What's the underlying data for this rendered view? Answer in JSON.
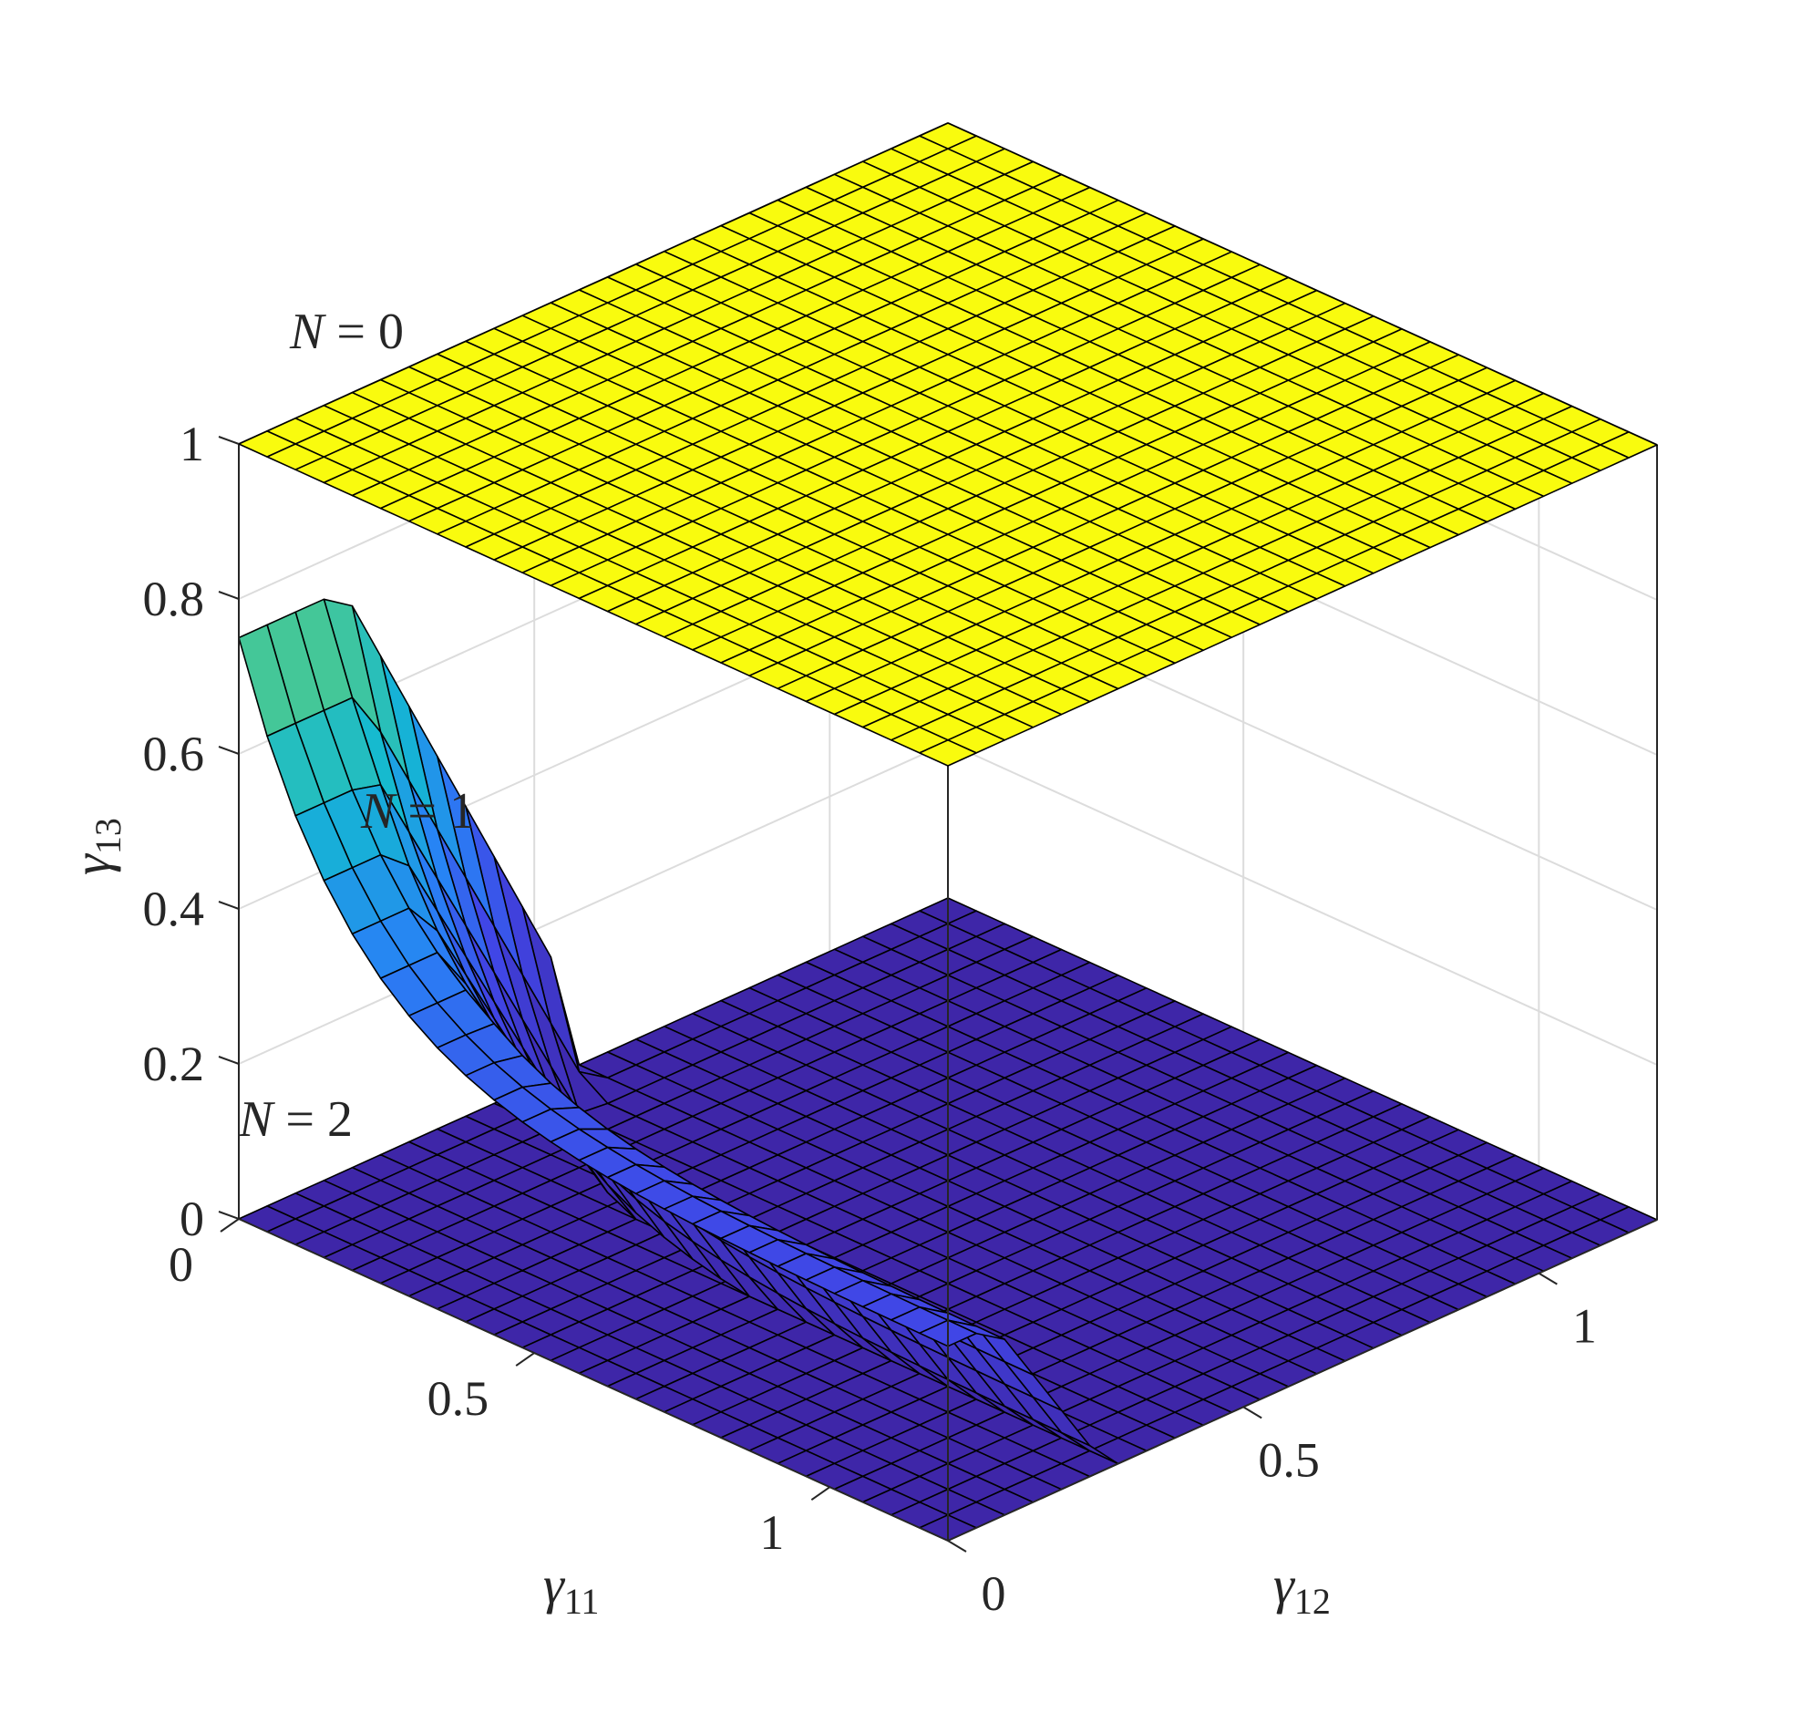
{
  "chart_data": {
    "type": "surface",
    "view": "3d",
    "xlabel": {
      "symbol": "γ",
      "sub": "11"
    },
    "ylabel": {
      "symbol": "γ",
      "sub": "12"
    },
    "zlabel": {
      "symbol": "γ",
      "sub": "13"
    },
    "xlim": [
      0,
      1.2
    ],
    "ylim": [
      0,
      1.2
    ],
    "zlim": [
      0,
      1
    ],
    "x_ticks": [
      0,
      0.5,
      1
    ],
    "x_tick_labels": [
      "0",
      "0.5",
      "1"
    ],
    "y_ticks": [
      0,
      0.5,
      1
    ],
    "y_tick_labels": [
      "0",
      "0.5",
      "1"
    ],
    "z_ticks": [
      0,
      0.2,
      0.4,
      0.6,
      0.8,
      1
    ],
    "z_tick_labels": [
      "0",
      "0.2",
      "0.4",
      "0.6",
      "0.8",
      "1"
    ],
    "grid": true,
    "colormap": "parula",
    "colors": {
      "N0_surface": "#f9fb0e",
      "low_surface": "#3e26a8",
      "mid_blue": "#2f80f0",
      "teal": "#12bebb",
      "edge": "#000000",
      "box": "#262626",
      "grid": "#dcdcdc"
    },
    "mesh_divisions": 25,
    "surfaces": [
      {
        "name": "N = 0",
        "description_value": "γ13 = 1 for all γ11, γ12",
        "z_constant": 1
      },
      {
        "name": "N = 1",
        "peak": {
          "gamma11": 0,
          "gamma12": 0,
          "gamma13": 0.75
        },
        "plateau": {
          "gamma11_from": 0.55,
          "gamma13": 0.25,
          "gamma12_to": 0.45
        }
      },
      {
        "name": "N = 2",
        "z_constant": 0
      }
    ],
    "annotations": [
      {
        "var": "N",
        "text": "= 0"
      },
      {
        "var": "N",
        "text": "= 1"
      },
      {
        "var": "N",
        "text": "= 2"
      }
    ]
  }
}
